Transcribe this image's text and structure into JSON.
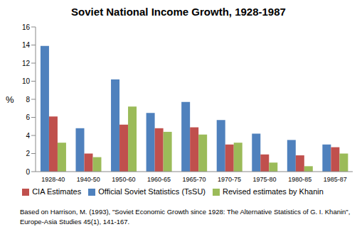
{
  "chart_data": {
    "type": "bar",
    "title": "Soviet National Income Growth, 1928-1987",
    "y_label": "%",
    "categories": [
      "1928-40",
      "1940-50",
      "1950-60",
      "1960-65",
      "1965-70",
      "1970-75",
      "1975-80",
      "1980-85",
      "1985-87"
    ],
    "series": [
      {
        "name": "Official Soviet Statistics (TsSU)",
        "color": "#4f81bd",
        "values": [
          13.9,
          4.8,
          10.2,
          6.5,
          7.7,
          5.7,
          4.2,
          3.5,
          3.0
        ]
      },
      {
        "name": "CIA Estimates",
        "color": "#c0504d",
        "values": [
          6.1,
          2.0,
          5.2,
          4.8,
          4.9,
          3.0,
          1.9,
          1.8,
          2.7
        ]
      },
      {
        "name": "Revised estimates by Khanin",
        "color": "#9bbb59",
        "values": [
          3.2,
          1.6,
          7.2,
          4.4,
          4.1,
          3.2,
          1.0,
          0.6,
          2.0
        ]
      }
    ],
    "ylim": [
      0,
      16
    ],
    "yticks": [
      0,
      2,
      4,
      6,
      8,
      10,
      12,
      14,
      16
    ],
    "grid": false,
    "legend": "bottom",
    "annotations": [
      "Based on Harrison, M. (1993), \"Soviet Economic Growth since 1928: The Alternative Statistics of G. I. Khanin\",",
      "Europe-Asia Studies 45(1), 141-167."
    ]
  }
}
